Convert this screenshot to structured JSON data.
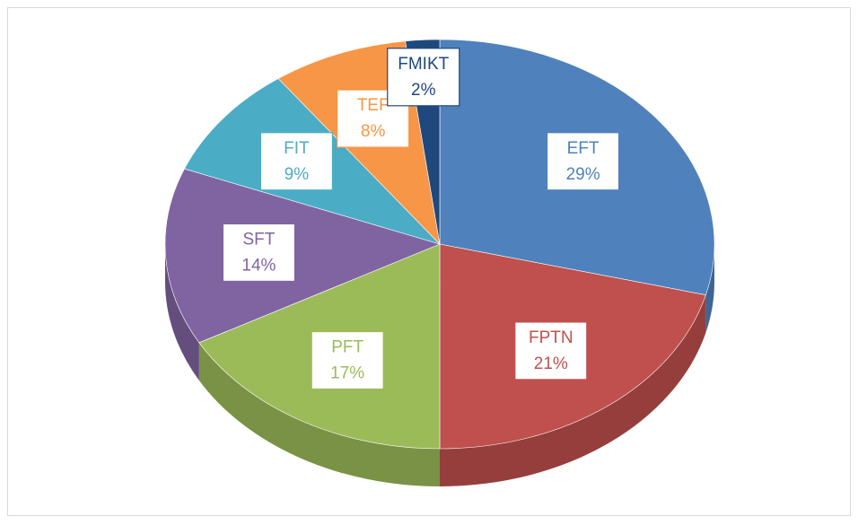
{
  "chart_data": {
    "type": "pie",
    "categories": [
      "EFT",
      "FPTN",
      "PFT",
      "SFT",
      "FIT",
      "TEF",
      "FMIKT"
    ],
    "values": [
      29,
      21,
      17,
      14,
      9,
      8,
      2
    ],
    "value_labels": [
      "29%",
      "21%",
      "17%",
      "14%",
      "9%",
      "8%",
      "2%"
    ],
    "colors": [
      "#4f81bd",
      "#c0504d",
      "#9bbb59",
      "#8064a2",
      "#4bacc6",
      "#f79646",
      "#1f497d"
    ]
  }
}
